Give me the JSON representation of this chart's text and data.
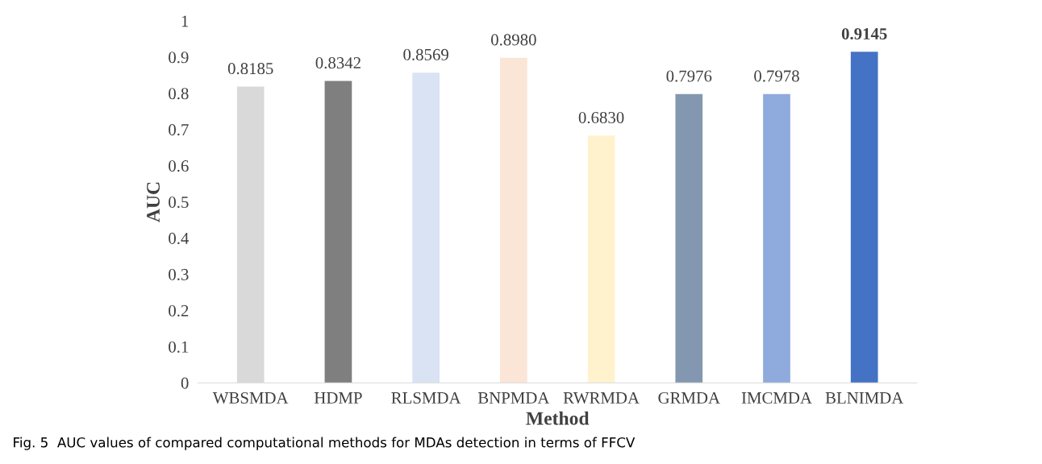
{
  "chart_data": {
    "type": "bar",
    "xlabel": "Method",
    "ylabel": "AUC",
    "categories": [
      "WBSMDA",
      "HDMP",
      "RLSMDA",
      "BNPMDA",
      "RWRMDA",
      "GRMDA",
      "IMCMDA",
      "BLNIMDA"
    ],
    "values": [
      0.8185,
      0.8342,
      0.8569,
      0.898,
      0.683,
      0.7976,
      0.7978,
      0.9145
    ],
    "value_labels": [
      "0.8185",
      "0.8342",
      "0.8569",
      "0.8980",
      "0.6830",
      "0.7976",
      "0.7978",
      "0.9145"
    ],
    "colors": [
      "#d9d9d9",
      "#7f7f7f",
      "#dae3f3",
      "#fbe5d6",
      "#fff2cc",
      "#8497b0",
      "#8faadc",
      "#4472c4"
    ],
    "ylim": [
      0,
      1
    ],
    "yticks": [
      0,
      0.1,
      0.2,
      0.3,
      0.4,
      0.5,
      0.6,
      0.7,
      0.8,
      0.9,
      1
    ],
    "grid": false,
    "legend": false,
    "annotations": [
      "Fig. 5  AUC values of compared computational methods for MDAs detection in terms of FFCV"
    ]
  }
}
